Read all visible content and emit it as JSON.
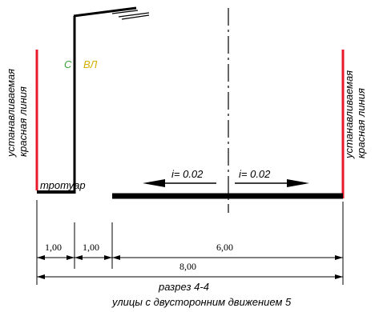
{
  "labels": {
    "red_line_left": [
      "устанавливаемая",
      "красная линия"
    ],
    "red_line_right": [
      "устанавливаемая",
      "красная линия"
    ],
    "sidewalk": "тротуар",
    "pole_c": "С",
    "pole_vl": "ВЛ",
    "slope_left": "i= 0.02",
    "slope_right": "i= 0.02"
  },
  "dimensions": {
    "d1": "1,00",
    "d2": "1,00",
    "d3": "6,00",
    "total": "8,00"
  },
  "caption": {
    "line1": "разрез 4-4",
    "line2": "улицы с двусторонним движением 5"
  },
  "colors": {
    "red_line": "#e8192c",
    "label_c": "#3aa335",
    "label_vl": "#d4b000"
  }
}
